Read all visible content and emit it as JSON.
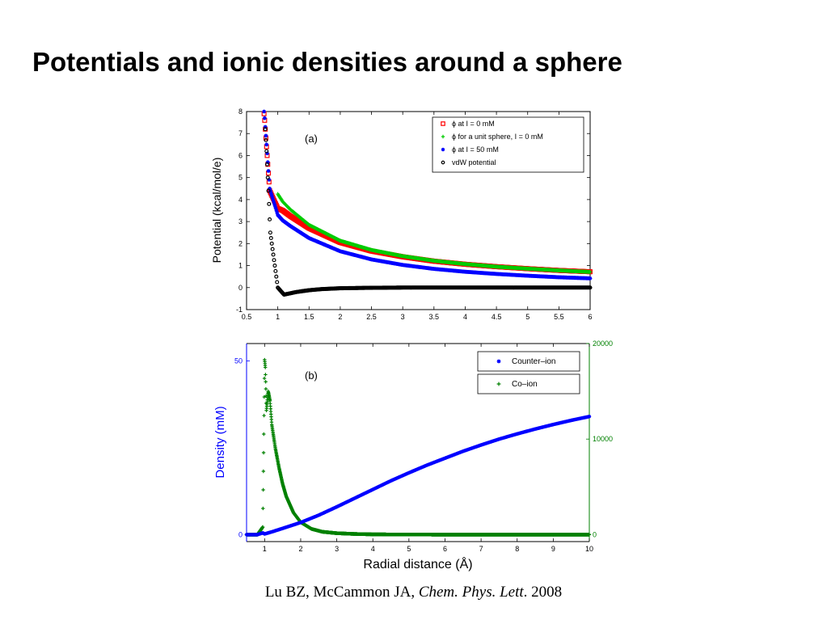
{
  "slide": {
    "title": "Potentials and ionic densities around a sphere",
    "citation": {
      "authors": "Lu BZ, McCammon JA, ",
      "journal": "Chem. Phys. Lett",
      "sep": ". ",
      "year": "2008"
    }
  },
  "chart_data": [
    {
      "type": "scatter",
      "panel_label": "(a)",
      "title": "",
      "xlabel": "",
      "ylabel": "Potential (kcal/mol/e)",
      "xlim": [
        0.5,
        6
      ],
      "ylim": [
        -1,
        8
      ],
      "xticks": [
        "0.5",
        "1",
        "1.5",
        "2",
        "2.5",
        "3",
        "3.5",
        "4",
        "4.5",
        "5",
        "5.5",
        "6"
      ],
      "yticks": [
        "-1",
        "0",
        "1",
        "2",
        "3",
        "4",
        "5",
        "6",
        "7",
        "8"
      ],
      "grid": false,
      "legend_placement": "top-right",
      "series": [
        {
          "name": "ϕ at I = 0 mM",
          "color": "#ff0000",
          "marker": "square",
          "x": [
            0.78,
            0.79,
            0.8,
            0.81,
            0.82,
            0.83,
            0.84,
            0.85,
            0.86,
            0.87,
            1.0,
            1.08,
            1.2,
            1.5,
            2.0,
            2.5,
            3.0,
            3.5,
            4.0,
            4.5,
            5.0,
            5.5,
            6.0
          ],
          "y": [
            7.9,
            7.6,
            7.2,
            6.8,
            6.4,
            6.0,
            5.6,
            5.2,
            4.8,
            4.4,
            3.6,
            3.5,
            3.25,
            2.7,
            2.05,
            1.66,
            1.4,
            1.2,
            1.06,
            0.95,
            0.86,
            0.78,
            0.72
          ]
        },
        {
          "name": "ϕ for a unit sphere, I = 0 mM",
          "color": "#00cc00",
          "marker": "plus",
          "x": [
            1.0,
            1.08,
            1.2,
            1.5,
            2.0,
            2.5,
            3.0,
            3.5,
            4.0,
            4.5,
            5.0,
            5.5,
            6.0
          ],
          "y": [
            4.25,
            3.9,
            3.55,
            2.85,
            2.13,
            1.71,
            1.43,
            1.22,
            1.07,
            0.95,
            0.86,
            0.78,
            0.71
          ]
        },
        {
          "name": "ϕ at I = 50 mM",
          "color": "#0000ff",
          "marker": "star",
          "x": [
            0.78,
            0.79,
            0.8,
            0.81,
            0.82,
            0.83,
            0.84,
            0.85,
            0.86,
            0.87,
            1.0,
            1.08,
            1.2,
            1.5,
            2.0,
            2.5,
            3.0,
            3.5,
            4.0,
            4.5,
            5.0,
            5.5,
            6.0
          ],
          "y": [
            8.0,
            7.7,
            7.3,
            6.9,
            6.5,
            6.1,
            5.7,
            5.3,
            4.9,
            4.5,
            3.3,
            3.05,
            2.8,
            2.25,
            1.65,
            1.28,
            1.03,
            0.85,
            0.72,
            0.62,
            0.54,
            0.47,
            0.42
          ]
        },
        {
          "name": "vdW potential",
          "color": "#000000",
          "marker": "circle",
          "x": [
            0.8,
            0.81,
            0.82,
            0.83,
            0.84,
            0.85,
            0.86,
            0.87,
            0.88,
            1.0,
            1.1,
            1.2,
            1.3,
            1.5,
            1.7,
            2.0,
            2.5,
            3.0,
            4.0,
            5.0,
            6.0
          ],
          "y": [
            7.2,
            6.7,
            6.2,
            5.6,
            5.0,
            4.4,
            3.8,
            3.1,
            2.5,
            0.0,
            -0.32,
            -0.26,
            -0.2,
            -0.12,
            -0.07,
            -0.03,
            -0.01,
            0.0,
            0.0,
            0.0,
            0.0
          ]
        }
      ]
    },
    {
      "type": "scatter",
      "panel_label": "(b)",
      "title": "",
      "xlabel": "Radial distance (Å)",
      "ylabel": "Density (mM)",
      "xlim": [
        0.5,
        10
      ],
      "ylim": [
        -2,
        55
      ],
      "y2lim": [
        -727,
        20000
      ],
      "xticks": [
        "1",
        "2",
        "3",
        "4",
        "5",
        "6",
        "7",
        "8",
        "9",
        "10"
      ],
      "yticks": [
        "0",
        "50"
      ],
      "y2ticks": [
        "0",
        "10000",
        "20000"
      ],
      "grid": false,
      "legend_placement": "top-right",
      "series": [
        {
          "name": "Counter–ion",
          "color": "#0000ff",
          "marker": "star",
          "axis": "left",
          "x": [
            0.5,
            0.8,
            0.95,
            1.0,
            1.2,
            1.5,
            2.0,
            2.5,
            3.0,
            3.5,
            4.0,
            4.5,
            5.0,
            5.5,
            6.0,
            6.5,
            7.0,
            7.5,
            8.0,
            8.5,
            9.0,
            9.5,
            10.0
          ],
          "y": [
            0.0,
            0.0,
            0.5,
            0.2,
            0.8,
            1.8,
            3.5,
            5.6,
            8.0,
            10.5,
            13.0,
            15.5,
            17.8,
            20.0,
            22.0,
            24.0,
            25.8,
            27.5,
            29.0,
            30.4,
            31.7,
            32.9,
            34.0
          ]
        },
        {
          "name": "Co–ion",
          "color": "#008000",
          "marker": "plus",
          "axis": "right",
          "x": [
            0.5,
            0.8,
            0.95,
            1.0,
            1.02,
            1.05,
            1.1,
            1.15,
            1.2,
            1.3,
            1.4,
            1.5,
            1.6,
            1.8,
            2.0,
            2.3,
            2.6,
            3.0,
            3.5,
            4.0,
            5.0,
            6.0,
            7.0,
            8.0,
            9.0,
            10.0
          ],
          "y": [
            0,
            0,
            800,
            18300,
            17500,
            13000,
            15000,
            14000,
            11500,
            9000,
            7000,
            5300,
            4000,
            2300,
            1300,
            600,
            300,
            150,
            70,
            30,
            10,
            0,
            0,
            0,
            0,
            0
          ]
        }
      ]
    }
  ]
}
